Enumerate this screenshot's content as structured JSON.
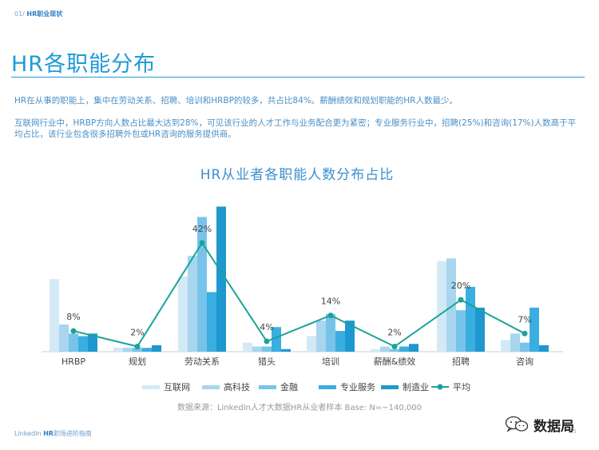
{
  "header": {
    "section_number": "01/",
    "section_name": "HR职业现状"
  },
  "page_title": "HR各职能分布",
  "paragraphs": [
    "HR在从事的职能上，集中在劳动关系、招聘、培训和HRBP的较多，共占比84%。薪酬绩效和规划职能的HR人数最少。",
    "互联网行业中，HRBP方向人数占比最大达到28%，可见该行业的人才工作与业务配合更为紧密；专业服务行业中，招聘(25%)和咨询(17%)人数高于平均占比，该行业包含很多招聘外包或HR咨询的服务提供商。"
  ],
  "chart_data": {
    "type": "bar",
    "title": "HR从业者各职能人数分布占比",
    "categories": [
      "HRBP",
      "规划",
      "劳动关系",
      "猎头",
      "培训",
      "薪酬&绩效",
      "招聘",
      "咨询"
    ],
    "series": [
      {
        "name": "互联网",
        "color": "#d3e9f6",
        "values": [
          28,
          1.5,
          29,
          3.5,
          6,
          1,
          35,
          4.5
        ]
      },
      {
        "name": "高科技",
        "color": "#a7d6ee",
        "values": [
          10.5,
          1.5,
          37,
          2,
          12,
          2,
          36,
          7
        ]
      },
      {
        "name": "金融",
        "color": "#78c3ea",
        "values": [
          7,
          1.5,
          52,
          2,
          14.5,
          1,
          16,
          3.5
        ]
      },
      {
        "name": "专业服务",
        "color": "#3aaee0",
        "values": [
          6,
          1.5,
          23,
          9.5,
          8,
          2,
          25,
          17
        ]
      },
      {
        "name": "制造业",
        "color": "#1e98cf",
        "values": [
          7,
          2.5,
          56,
          1,
          12,
          3,
          17,
          2.5
        ]
      }
    ],
    "average": {
      "name": "平均",
      "color": "#1aa39a",
      "values": [
        8,
        2,
        42,
        4,
        14,
        2,
        20,
        7
      ],
      "labels": [
        "8%",
        "2%",
        "42%",
        "4%",
        "14%",
        "2%",
        "20%",
        "7%"
      ]
    },
    "ylim": [
      0,
      58
    ],
    "grid": false,
    "legend": "bottom"
  },
  "source_note": "数据来源：LinkedIn人才大数据HR从业者样本   Base: N=~140,000",
  "footer": {
    "brand_prefix": "LinkedIn",
    "brand_bold": "HR",
    "brand_rest": "职场进阶指南",
    "page": "P.5"
  },
  "watermark": {
    "text": "数据局",
    "icon": "wechat-icon"
  }
}
